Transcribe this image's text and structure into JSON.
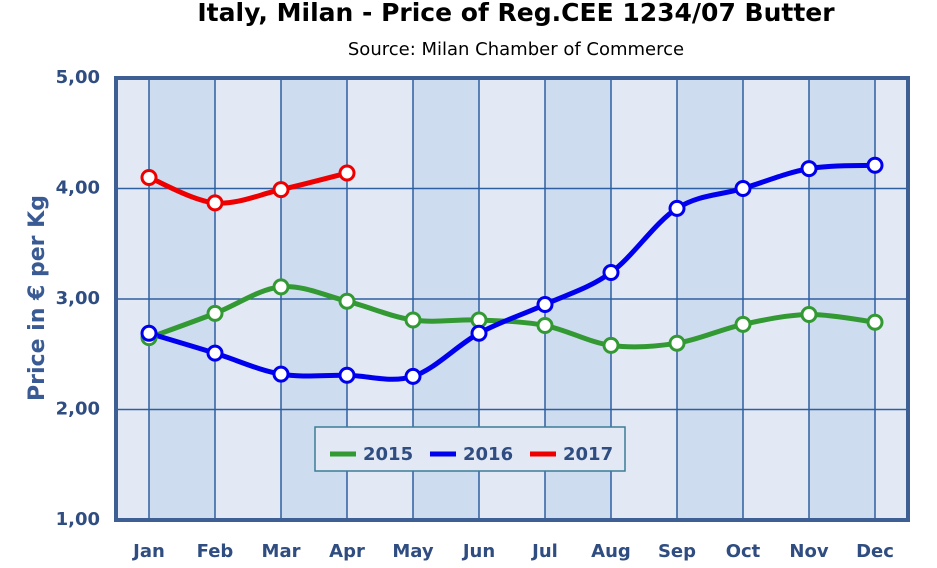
{
  "chart_data": {
    "type": "line",
    "title": "Italy, Milan - Price of Reg.CEE 1234/07 Butter",
    "subtitle": "Source: Milan Chamber of Commerce",
    "y_label": "Price in € per Kg",
    "categories": [
      "Jan",
      "Feb",
      "Mar",
      "Apr",
      "May",
      "Jun",
      "Jul",
      "Aug",
      "Sep",
      "Oct",
      "Nov",
      "Dec"
    ],
    "series": [
      {
        "name": "2015",
        "color": "#339933",
        "values": [
          2.65,
          2.87,
          3.11,
          2.98,
          2.81,
          2.81,
          2.76,
          2.58,
          2.6,
          2.77,
          2.86,
          2.79
        ]
      },
      {
        "name": "2016",
        "color": "#0000ee",
        "values": [
          2.69,
          2.51,
          2.32,
          2.31,
          2.3,
          2.69,
          2.95,
          3.24,
          3.82,
          4.0,
          4.18,
          4.21
        ]
      },
      {
        "name": "2017",
        "color": "#ee0000",
        "values": [
          4.1,
          3.87,
          3.99,
          4.14,
          null,
          null,
          null,
          null,
          null,
          null,
          null,
          null
        ]
      }
    ],
    "ylim": [
      1,
      5
    ],
    "yticks": [
      {
        "value": 1,
        "label": "1,00"
      },
      {
        "value": 2,
        "label": "2,00"
      },
      {
        "value": 3,
        "label": "3,00"
      },
      {
        "value": 4,
        "label": "4,00"
      },
      {
        "value": 5,
        "label": "5,00"
      }
    ],
    "grid": true
  }
}
